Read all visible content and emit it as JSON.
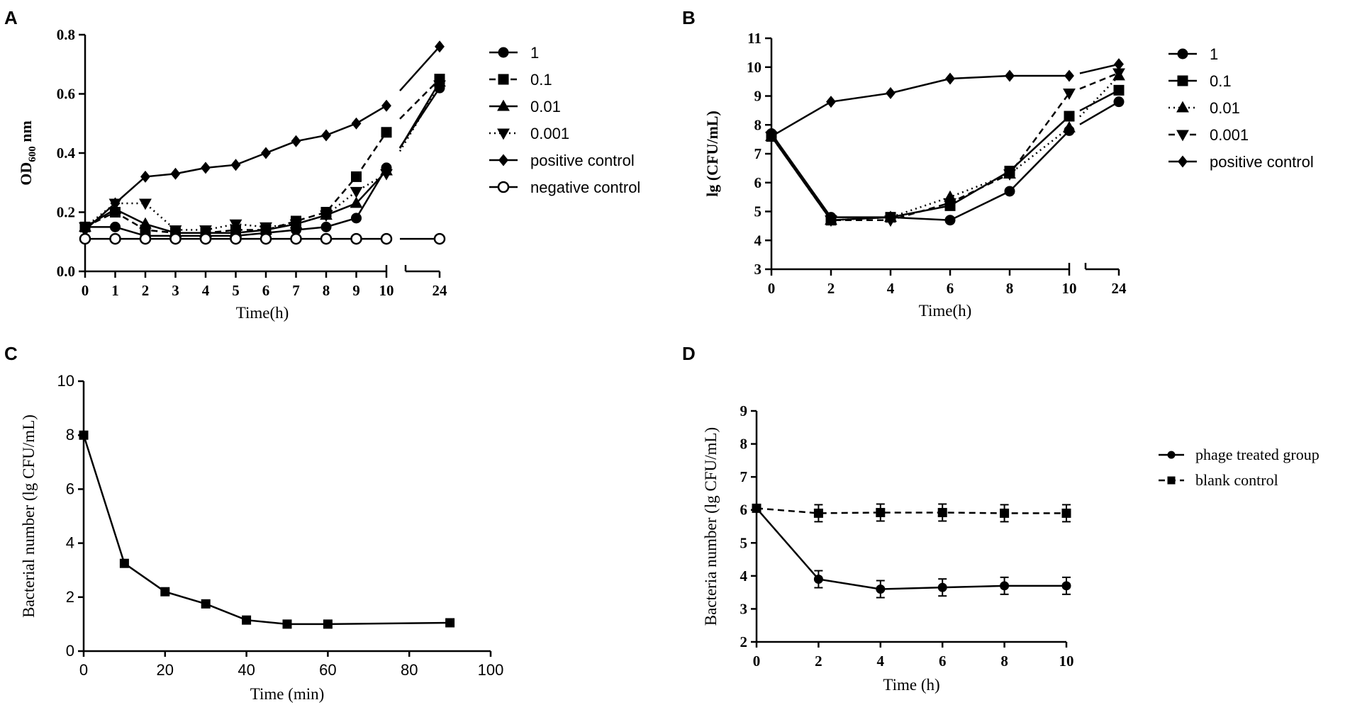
{
  "chart_data": [
    {
      "panel": "A",
      "type": "line",
      "title": "",
      "ylabel_main": "OD",
      "ylabel_sub": "600",
      "ylabel_suffix": " nm",
      "xlabel": "Time(h)",
      "x": [
        0,
        1,
        2,
        3,
        4,
        5,
        6,
        7,
        8,
        9,
        10,
        24
      ],
      "x_tick_labels": [
        "0",
        "1",
        "2",
        "3",
        "4",
        "5",
        "6",
        "7",
        "8",
        "9",
        "10",
        "24"
      ],
      "x_axis_break": [
        10,
        24
      ],
      "ylim": [
        0,
        0.8
      ],
      "y_ticks": [
        0,
        0.2,
        0.4,
        0.6,
        0.8
      ],
      "y_tick_labels": [
        "0.0",
        "0.2",
        "0.4",
        "0.6",
        "0.8"
      ],
      "series": [
        {
          "name": "1",
          "marker": "circle",
          "dash": "solid",
          "values": [
            0.15,
            0.15,
            0.12,
            0.12,
            0.12,
            0.12,
            0.13,
            0.14,
            0.15,
            0.18,
            0.35,
            0.62
          ]
        },
        {
          "name": "0.1",
          "marker": "square",
          "dash": "dashed",
          "values": [
            0.15,
            0.2,
            0.14,
            0.13,
            0.13,
            0.14,
            0.14,
            0.17,
            0.2,
            0.32,
            0.47,
            0.65
          ]
        },
        {
          "name": "0.01",
          "marker": "triangle",
          "dash": "solid",
          "values": [
            0.15,
            0.21,
            0.16,
            0.13,
            0.13,
            0.13,
            0.14,
            0.16,
            0.19,
            0.23,
            0.34,
            0.64
          ]
        },
        {
          "name": "0.001",
          "marker": "triangle-down",
          "dash": "dotted",
          "values": [
            0.15,
            0.23,
            0.23,
            0.14,
            0.14,
            0.16,
            0.15,
            0.16,
            0.19,
            0.27,
            0.33,
            0.63
          ]
        },
        {
          "name": "positive control",
          "marker": "diamond",
          "dash": "solid",
          "values": [
            0.14,
            0.23,
            0.32,
            0.33,
            0.35,
            0.36,
            0.4,
            0.44,
            0.46,
            0.5,
            0.56,
            0.76
          ]
        },
        {
          "name": "negative control",
          "marker": "open-circle",
          "dash": "solid",
          "values": [
            0.11,
            0.11,
            0.11,
            0.11,
            0.11,
            0.11,
            0.11,
            0.11,
            0.11,
            0.11,
            0.11,
            0.11
          ]
        }
      ]
    },
    {
      "panel": "B",
      "type": "line",
      "title": "",
      "ylabel": "lg (CFU/mL)",
      "xlabel": "Time(h)",
      "x": [
        0,
        2,
        4,
        6,
        8,
        10,
        24
      ],
      "x_tick_labels": [
        "0",
        "2",
        "4",
        "6",
        "8",
        "10",
        "24"
      ],
      "x_axis_break": [
        10,
        24
      ],
      "ylim": [
        3,
        11
      ],
      "y_ticks": [
        3,
        4,
        5,
        6,
        7,
        8,
        9,
        10,
        11
      ],
      "y_tick_labels": [
        "3",
        "4",
        "5",
        "6",
        "7",
        "8",
        "9",
        "10",
        "11"
      ],
      "series": [
        {
          "name": "1",
          "marker": "circle",
          "dash": "solid",
          "values": [
            7.7,
            4.8,
            4.8,
            4.7,
            5.7,
            7.8,
            8.8
          ]
        },
        {
          "name": "0.1",
          "marker": "square",
          "dash": "solid",
          "values": [
            7.6,
            4.7,
            4.8,
            5.2,
            6.4,
            8.3,
            9.2
          ]
        },
        {
          "name": "0.01",
          "marker": "triangle",
          "dash": "dotted",
          "values": [
            7.6,
            4.7,
            4.8,
            5.5,
            6.3,
            7.9,
            9.7
          ]
        },
        {
          "name": "0.001",
          "marker": "triangle-down",
          "dash": "dashed",
          "values": [
            7.6,
            4.7,
            4.7,
            5.3,
            6.3,
            9.1,
            9.8
          ]
        },
        {
          "name": "positive control",
          "marker": "diamond",
          "dash": "solid",
          "values": [
            7.6,
            8.8,
            9.1,
            9.6,
            9.7,
            9.7,
            10.1
          ]
        }
      ]
    },
    {
      "panel": "C",
      "type": "line",
      "title": "",
      "ylabel": "Bacterial number (lg CFU/mL)",
      "xlabel": "Time (min)",
      "xlim": [
        0,
        100
      ],
      "x_ticks": [
        0,
        20,
        40,
        60,
        80,
        100
      ],
      "x_tick_labels": [
        "0",
        "20",
        "40",
        "60",
        "80",
        "100"
      ],
      "ylim": [
        0,
        10
      ],
      "y_ticks": [
        0,
        2,
        4,
        6,
        8,
        10
      ],
      "y_tick_labels": [
        "0",
        "2",
        "4",
        "6",
        "8",
        "10"
      ],
      "series": [
        {
          "name": "",
          "marker": "square",
          "dash": "solid",
          "x": [
            0,
            10,
            20,
            30,
            40,
            50,
            60,
            90
          ],
          "values": [
            8.0,
            3.25,
            2.2,
            1.75,
            1.15,
            1.0,
            1.0,
            1.05
          ]
        }
      ]
    },
    {
      "panel": "D",
      "type": "line",
      "title": "",
      "ylabel": "Bacteria number (lg CFU/mL)",
      "xlabel": "Time (h)",
      "xlim": [
        0,
        10
      ],
      "x_ticks": [
        0,
        2,
        4,
        6,
        8,
        10
      ],
      "x_tick_labels": [
        "0",
        "2",
        "4",
        "6",
        "8",
        "10"
      ],
      "ylim": [
        2,
        9
      ],
      "y_ticks": [
        2,
        3,
        4,
        5,
        6,
        7,
        8,
        9
      ],
      "y_tick_labels": [
        "2",
        "3",
        "4",
        "5",
        "6",
        "7",
        "8",
        "9"
      ],
      "series": [
        {
          "name": "phage treated group",
          "marker": "circle",
          "dash": "solid",
          "x": [
            0,
            2,
            4,
            6,
            8,
            10
          ],
          "values": [
            6.05,
            3.9,
            3.6,
            3.65,
            3.7,
            3.7
          ]
        },
        {
          "name": "blank control",
          "marker": "square",
          "dash": "dashed",
          "x": [
            0,
            2,
            4,
            6,
            8,
            10
          ],
          "values": [
            6.05,
            5.9,
            5.92,
            5.92,
            5.9,
            5.9
          ]
        }
      ]
    }
  ]
}
